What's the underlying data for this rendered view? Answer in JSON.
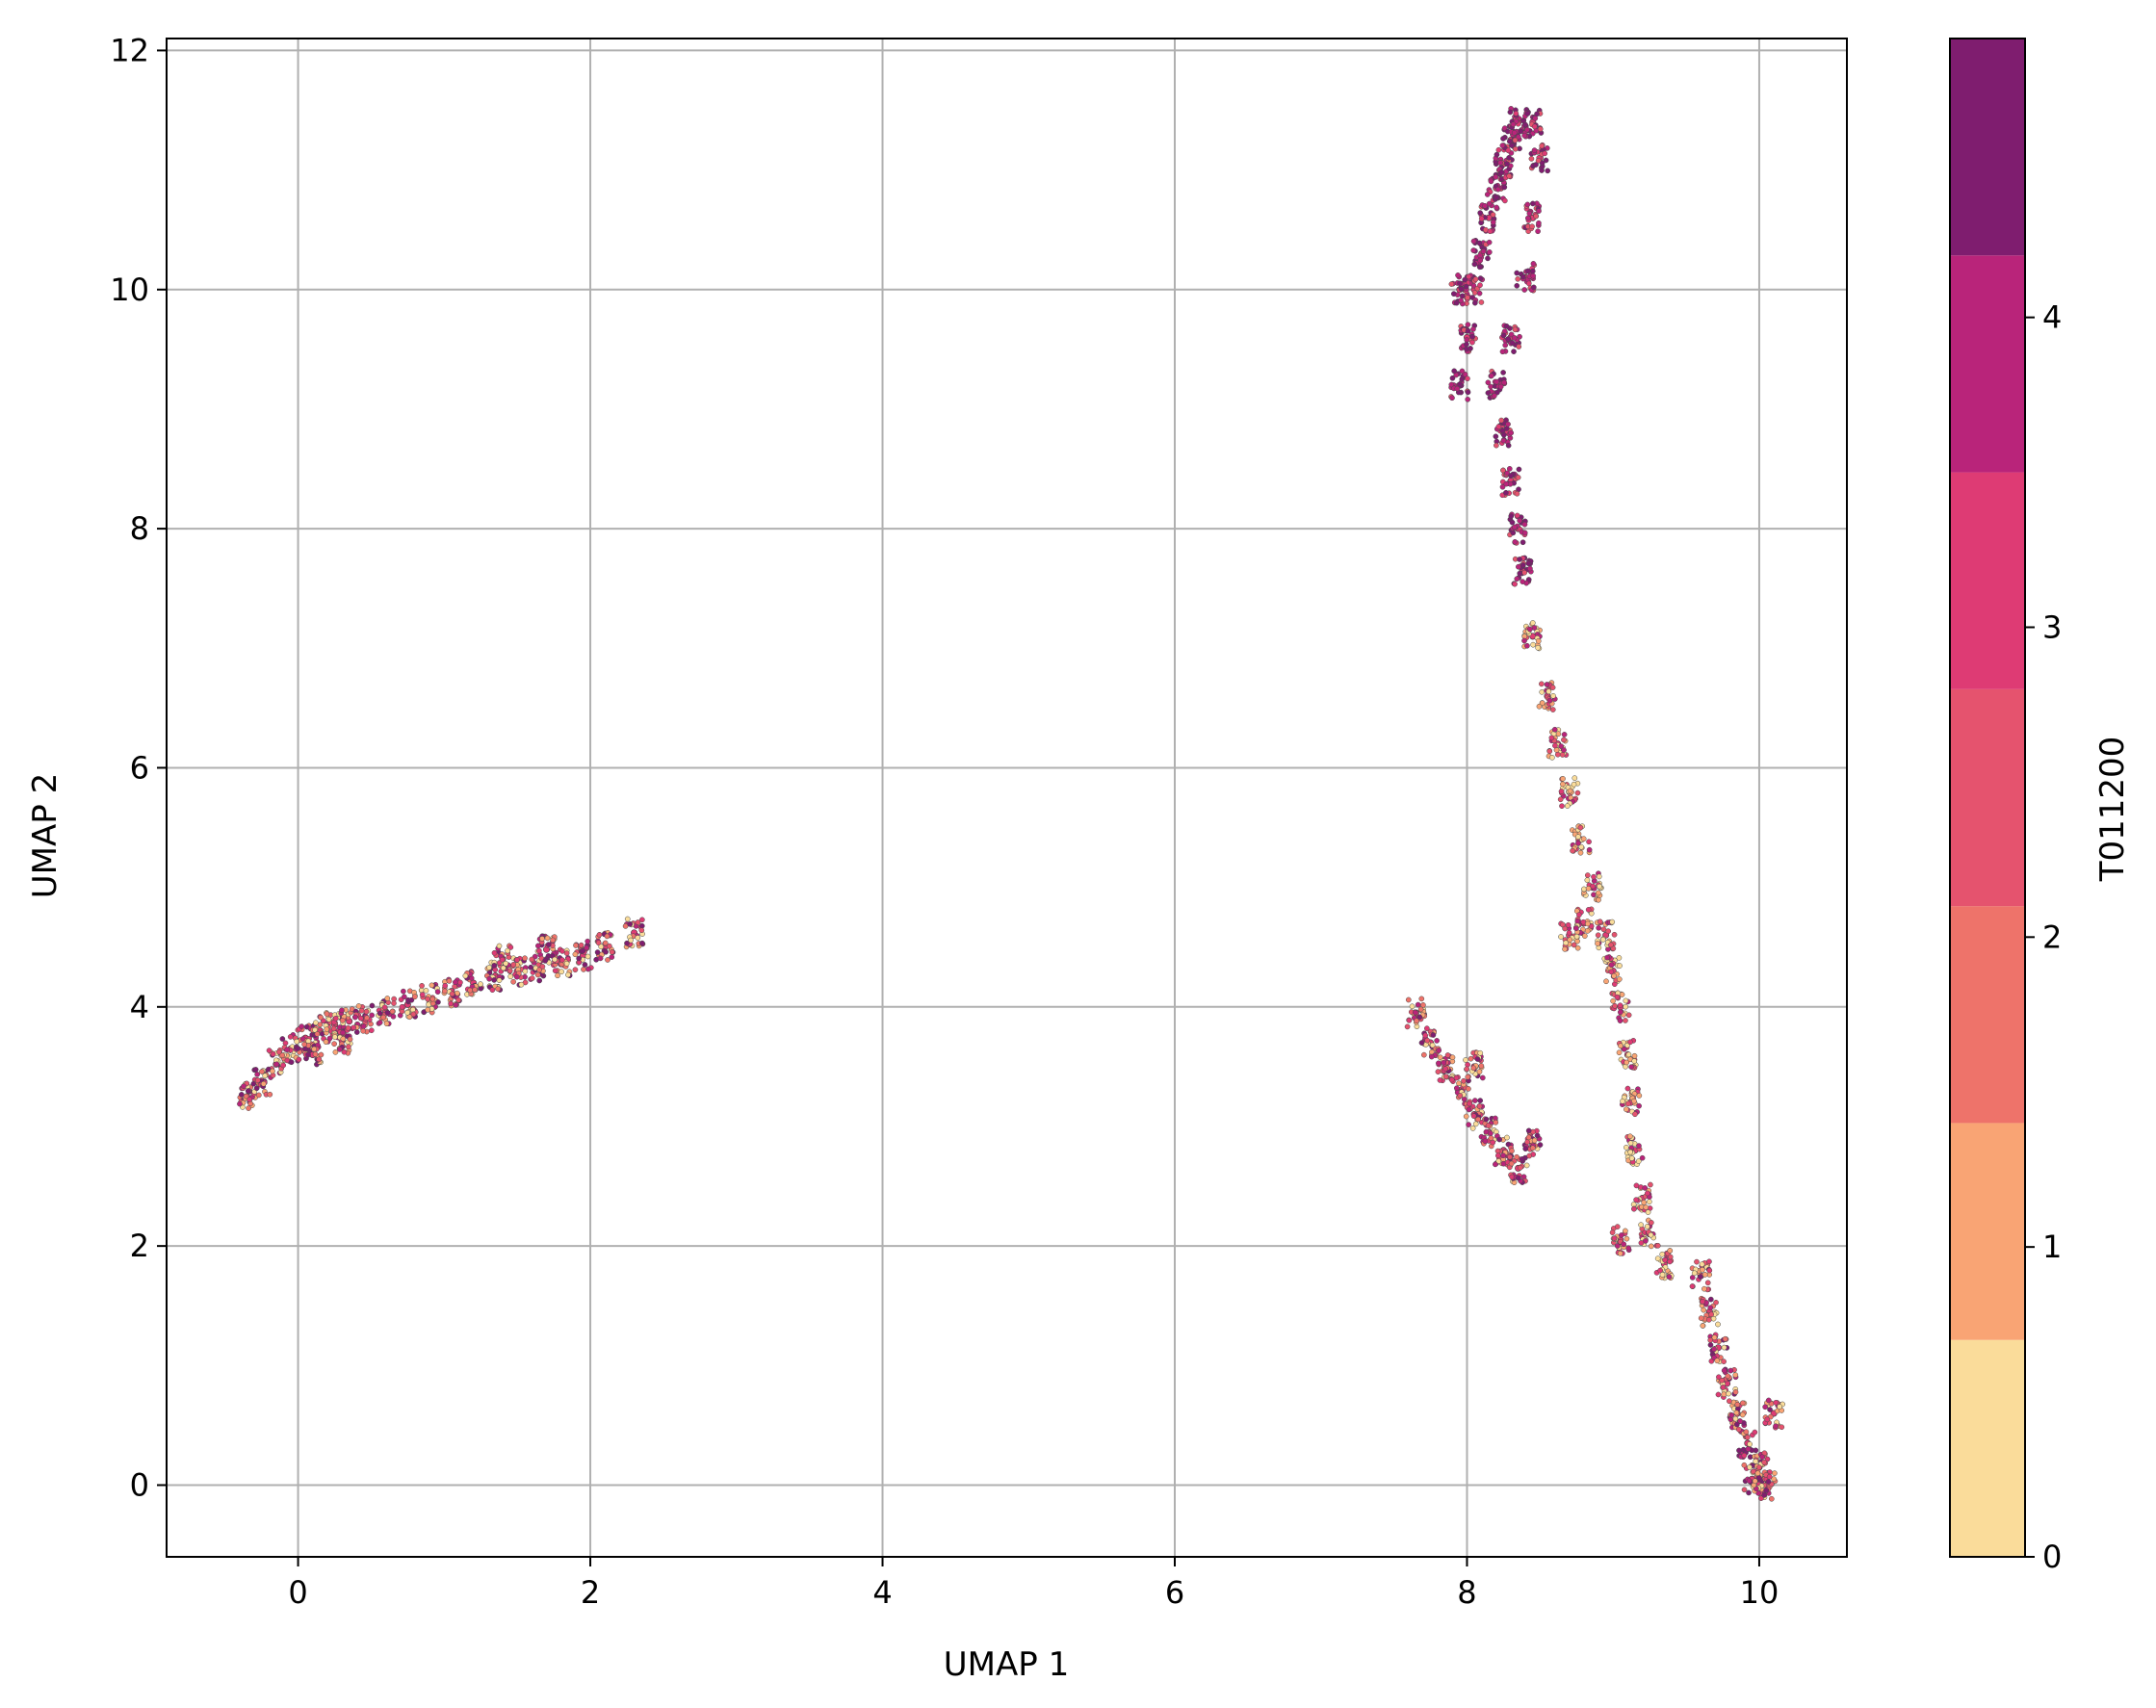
{
  "chart_data": {
    "type": "scatter",
    "title": "",
    "xlabel": "UMAP 1",
    "ylabel": "UMAP 2",
    "xlim": [
      -0.9,
      10.6
    ],
    "ylim": [
      -0.6,
      12.1
    ],
    "xticks": [
      0,
      2,
      4,
      6,
      8,
      10
    ],
    "yticks": [
      0,
      2,
      4,
      6,
      8,
      10,
      12
    ],
    "xtick_labels": [
      "0",
      "2",
      "4",
      "6",
      "8",
      "10"
    ],
    "ytick_labels": [
      "0",
      "2",
      "4",
      "6",
      "8",
      "10",
      "12"
    ],
    "grid": true,
    "colorbar": {
      "label": "T011200",
      "range": [
        0,
        4.9
      ],
      "ticks": [
        0,
        1,
        2,
        3,
        4
      ],
      "tick_labels": [
        "0",
        "1",
        "2",
        "3",
        "4"
      ],
      "bands": [
        {
          "from": 0.0,
          "to": 0.7,
          "color": "#fadc9a"
        },
        {
          "from": 0.7,
          "to": 1.4,
          "color": "#f9a474"
        },
        {
          "from": 1.4,
          "to": 2.1,
          "color": "#ee736a"
        },
        {
          "from": 2.1,
          "to": 2.8,
          "color": "#e5536e"
        },
        {
          "from": 2.8,
          "to": 3.5,
          "color": "#de3b74"
        },
        {
          "from": 3.5,
          "to": 4.2,
          "color": "#b9247a"
        },
        {
          "from": 4.2,
          "to": 4.9,
          "color": "#7f1d6f"
        }
      ]
    },
    "series": [
      {
        "cluster": "left-arc",
        "points": [
          [
            -0.35,
            3.25
          ],
          [
            -0.25,
            3.38
          ],
          [
            -0.15,
            3.52
          ],
          [
            -0.05,
            3.65
          ],
          [
            0.05,
            3.74
          ],
          [
            0.15,
            3.8
          ],
          [
            0.25,
            3.85
          ],
          [
            0.35,
            3.88
          ],
          [
            0.45,
            3.9
          ],
          [
            0.6,
            3.96
          ],
          [
            0.75,
            4.02
          ],
          [
            0.9,
            4.07
          ],
          [
            1.05,
            4.13
          ],
          [
            1.2,
            4.2
          ],
          [
            1.35,
            4.26
          ],
          [
            1.5,
            4.3
          ],
          [
            1.65,
            4.33
          ],
          [
            1.8,
            4.36
          ],
          [
            1.95,
            4.43
          ],
          [
            2.1,
            4.5
          ],
          [
            2.3,
            4.62
          ],
          [
            0.1,
            3.6
          ],
          [
            0.3,
            3.72
          ],
          [
            1.4,
            4.4
          ],
          [
            1.7,
            4.48
          ]
        ]
      },
      {
        "cluster": "top",
        "points": [
          [
            7.95,
            9.2
          ],
          [
            8.0,
            9.6
          ],
          [
            8.05,
            10.0
          ],
          [
            8.1,
            10.3
          ],
          [
            8.15,
            10.6
          ],
          [
            8.2,
            10.85
          ],
          [
            8.25,
            11.05
          ],
          [
            8.3,
            11.25
          ],
          [
            8.35,
            11.4
          ],
          [
            8.45,
            11.4
          ],
          [
            8.5,
            11.1
          ],
          [
            8.45,
            10.6
          ],
          [
            8.4,
            10.1
          ],
          [
            8.3,
            9.6
          ],
          [
            8.2,
            9.2
          ],
          [
            8.25,
            8.8
          ],
          [
            8.3,
            8.4
          ],
          [
            8.35,
            8.0
          ],
          [
            8.38,
            7.65
          ],
          [
            7.95,
            10.0
          ]
        ]
      },
      {
        "cluster": "diagonal-upper",
        "points": [
          [
            8.45,
            7.1
          ],
          [
            8.55,
            6.6
          ],
          [
            8.62,
            6.2
          ],
          [
            8.7,
            5.8
          ],
          [
            8.78,
            5.4
          ],
          [
            8.86,
            5.0
          ],
          [
            8.8,
            4.7
          ],
          [
            8.7,
            4.6
          ],
          [
            8.95,
            4.6
          ],
          [
            9.0,
            4.3
          ],
          [
            9.05,
            4.0
          ],
          [
            9.1,
            3.6
          ],
          [
            9.12,
            3.2
          ],
          [
            9.15,
            2.8
          ],
          [
            9.2,
            2.4
          ],
          [
            9.25,
            2.1
          ],
          [
            9.35,
            1.85
          ],
          [
            9.05,
            2.05
          ]
        ]
      },
      {
        "cluster": "small",
        "points": [
          [
            7.65,
            3.95
          ],
          [
            7.75,
            3.7
          ],
          [
            7.85,
            3.5
          ],
          [
            7.95,
            3.3
          ],
          [
            8.05,
            3.1
          ],
          [
            8.15,
            2.95
          ],
          [
            8.25,
            2.8
          ],
          [
            8.35,
            2.65
          ],
          [
            8.45,
            2.85
          ],
          [
            8.05,
            3.5
          ]
        ]
      },
      {
        "cluster": "diagonal-lower",
        "points": [
          [
            9.6,
            1.75
          ],
          [
            9.66,
            1.45
          ],
          [
            9.72,
            1.15
          ],
          [
            9.78,
            0.85
          ],
          [
            9.85,
            0.6
          ],
          [
            9.92,
            0.35
          ],
          [
            10.0,
            0.15
          ],
          [
            10.05,
            0.0
          ],
          [
            10.1,
            0.6
          ],
          [
            9.95,
            0.05
          ]
        ]
      }
    ]
  }
}
